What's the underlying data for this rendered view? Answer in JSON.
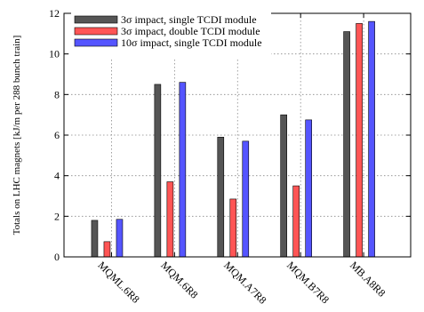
{
  "chart_data": {
    "type": "bar",
    "title": "",
    "xlabel": "",
    "ylabel": "Totals on LHC magnets [kJ/m per 288 bunch train]",
    "ylim": [
      0,
      12
    ],
    "yticks": [
      0,
      2,
      4,
      6,
      8,
      10,
      12
    ],
    "grid": true,
    "legend_position": "top-left",
    "categories": [
      "MQML.6R8",
      "MQM.6R8",
      "MQM.A7R8",
      "MQM.B7R8",
      "MB.A8R8"
    ],
    "series": [
      {
        "name": "3σ impact, single TCDI module",
        "color": "#555555",
        "values": [
          1.8,
          8.5,
          5.9,
          7.0,
          11.1
        ]
      },
      {
        "name": "3σ impact, double TCDI module",
        "color": "#ff5555",
        "values": [
          0.75,
          3.7,
          2.85,
          3.5,
          11.5
        ]
      },
      {
        "name": "10σ impact, single TCDI module",
        "color": "#5555ff",
        "values": [
          1.85,
          8.6,
          5.7,
          6.75,
          11.6
        ]
      }
    ]
  }
}
